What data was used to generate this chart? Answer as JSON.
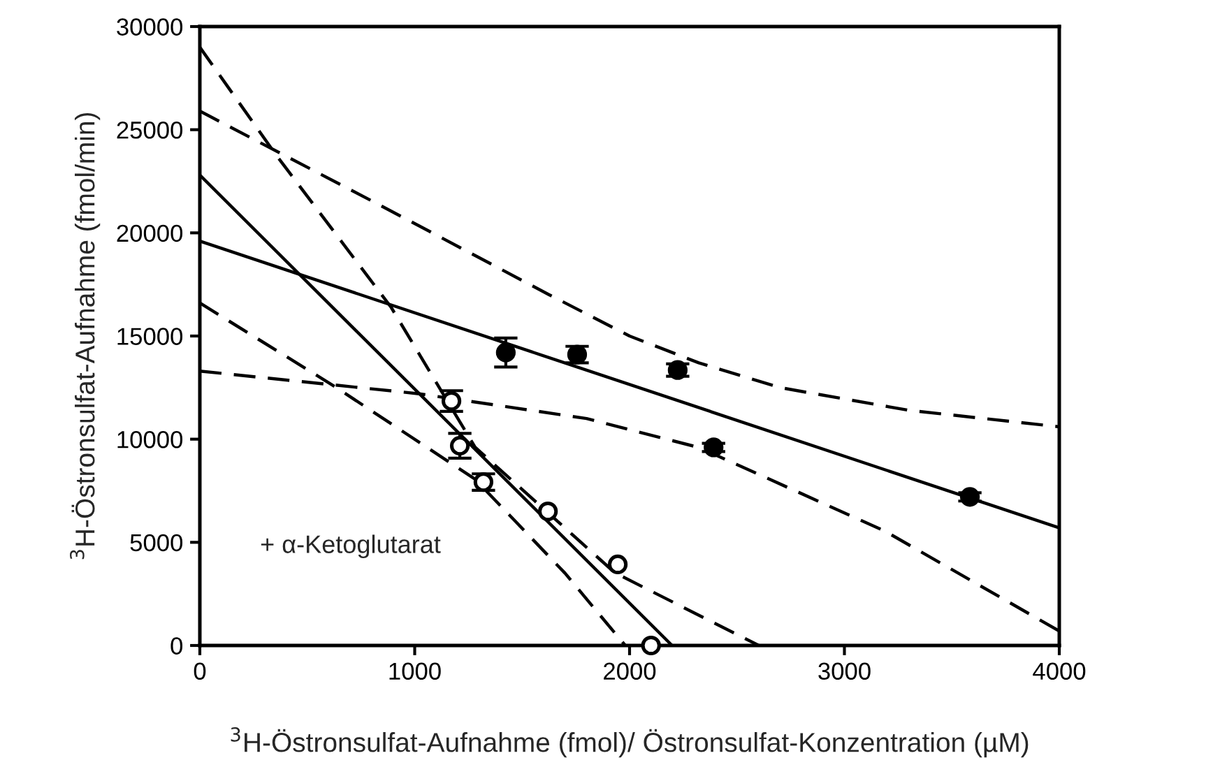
{
  "chart_data": {
    "type": "scatter",
    "xlabel": "$^{3}$H-Östronsulfat-Aufnahme (fmol)/ Östronsulfat-Konzentration (µM)",
    "ylabel": "$^{3}$H-Östronsulfat-Aufnahme (fmol/min)",
    "xlim": [
      0,
      4000
    ],
    "xticks": [
      0,
      1000,
      2000,
      3000,
      4000
    ],
    "ylim": [
      0,
      30000
    ],
    "yticks": [
      0,
      5000,
      10000,
      15000,
      20000,
      25000,
      30000
    ],
    "grid": false,
    "legend": false,
    "annotations": [
      "+ α-Ketoglutarat"
    ],
    "series": [
      {
        "type": "line",
        "color": "#000000",
        "line_style": "solid",
        "marker": "none",
        "x": [
          0,
          4000
        ],
        "values": [
          19600,
          5700
        ]
      },
      {
        "type": "line",
        "color": "#000000",
        "line_style": "dashed",
        "marker": "none",
        "x": [
          0,
          846,
          1626,
          2000,
          2322,
          2700,
          3300,
          4000
        ],
        "values": [
          25900,
          21300,
          17000,
          15000,
          13700,
          12500,
          11400,
          10600
        ]
      },
      {
        "type": "line",
        "color": "#000000",
        "line_style": "dashed",
        "marker": "none",
        "x": [
          0,
          1021,
          1800,
          2322,
          3187,
          4000
        ],
        "values": [
          13300,
          12200,
          11000,
          9600,
          5550,
          700
        ]
      },
      {
        "type": "line",
        "color": "#000000",
        "line_style": "solid",
        "marker": "none",
        "x": [
          0,
          2198
        ],
        "values": [
          22800,
          0
        ]
      },
      {
        "type": "line",
        "color": "#000000",
        "line_style": "dashed",
        "marker": "none",
        "x": [
          0,
          351,
          891,
          1281,
          1932,
          2602
        ],
        "values": [
          29000,
          23830,
          16380,
          9610,
          3520,
          0
        ]
      },
      {
        "type": "line",
        "color": "#000000",
        "line_style": "dashed",
        "marker": "none",
        "x": [
          0,
          631,
          1281,
          1700,
          1980
        ],
        "values": [
          16600,
          12530,
          8060,
          3500,
          0
        ]
      },
      {
        "color": "#000000",
        "marker": "circle",
        "x": [
          1424,
          1756,
          2224,
          2391,
          3584
        ],
        "values": [
          14200,
          14100,
          13350,
          9600,
          7200
        ],
        "errors": [
          700,
          400,
          300,
          200,
          200
        ]
      },
      {
        "color": "#ffffff",
        "marker": "circle",
        "x": [
          1171,
          1210,
          1320,
          1620,
          1945,
          2100
        ],
        "values": [
          11850,
          9680,
          7920,
          6500,
          3930,
          0
        ],
        "errors": [
          500,
          600,
          400,
          null,
          null,
          null
        ]
      }
    ]
  }
}
